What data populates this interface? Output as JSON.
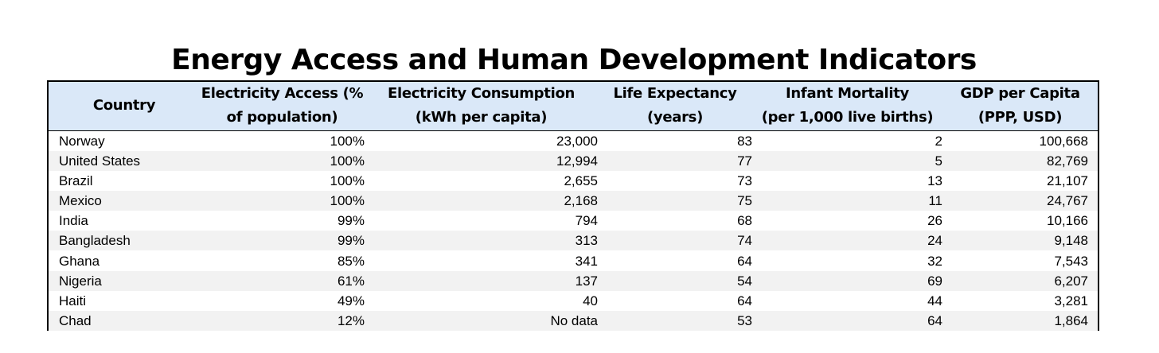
{
  "title": "Energy Access and Human Development Indicators",
  "table": {
    "headers": [
      {
        "line1": "Country",
        "line2": ""
      },
      {
        "line1": "Electricity Access (%",
        "line2": "of population)"
      },
      {
        "line1": "Electricity Consumption",
        "line2": "(kWh per capita)"
      },
      {
        "line1": "Life Expectancy",
        "line2": "(years)"
      },
      {
        "line1": "Infant Mortality",
        "line2": "(per 1,000 live births)"
      },
      {
        "line1": "GDP per Capita",
        "line2": "(PPP, USD)"
      }
    ],
    "rows": [
      [
        "Norway",
        "100%",
        "23,000",
        "83",
        "2",
        "100,668"
      ],
      [
        "United States",
        "100%",
        "12,994",
        "77",
        "5",
        "82,769"
      ],
      [
        "Brazil",
        "100%",
        "2,655",
        "73",
        "13",
        "21,107"
      ],
      [
        "Mexico",
        "100%",
        "2,168",
        "75",
        "11",
        "24,767"
      ],
      [
        "India",
        "99%",
        "794",
        "68",
        "26",
        "10,166"
      ],
      [
        "Bangladesh",
        "99%",
        "313",
        "74",
        "24",
        "9,148"
      ],
      [
        "Ghana",
        "85%",
        "341",
        "64",
        "32",
        "7,543"
      ],
      [
        "Nigeria",
        "61%",
        "137",
        "54",
        "69",
        "6,207"
      ],
      [
        "Haiti",
        "49%",
        "40",
        "64",
        "44",
        "3,281"
      ],
      [
        "Chad",
        "12%",
        "No data",
        "53",
        "64",
        "1,864"
      ]
    ]
  },
  "colors": {
    "header_bg": "#dae8f8",
    "stripe_bg": "#f2f2f2",
    "border": "#000000"
  }
}
